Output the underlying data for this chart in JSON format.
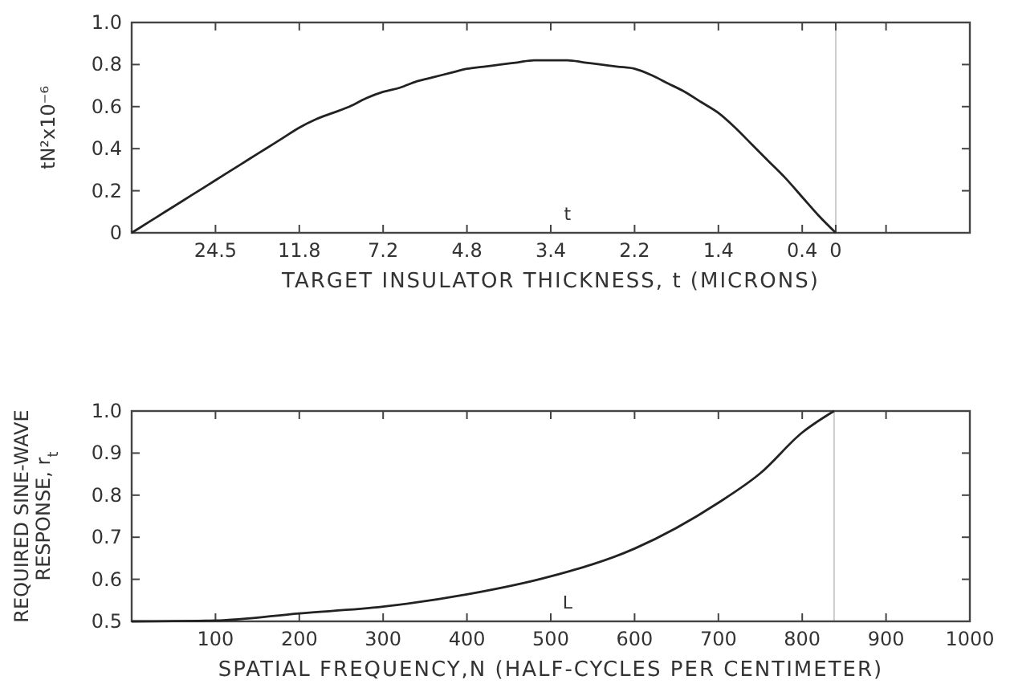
{
  "chart_data": [
    {
      "type": "line",
      "ylabel": "tN²x10⁻⁶",
      "xlabel": "TARGET INSULATOR THICKNESS, t (MICRONS)",
      "ylim": [
        0,
        1
      ],
      "categories": [
        null,
        null,
        null,
        null,
        null,
        "24.5",
        null,
        null,
        null,
        null,
        "11.8",
        null,
        null,
        null,
        null,
        "7.2",
        null,
        null,
        null,
        null,
        "4.8",
        null,
        null,
        null,
        null,
        "3.4",
        null,
        null,
        null,
        null,
        "2.2",
        null,
        null,
        null,
        null,
        "1.4",
        null,
        null,
        null,
        null,
        "0.4",
        null,
        "0",
        null,
        null,
        null,
        null,
        null,
        null,
        null,
        null
      ],
      "yticks": [
        0,
        0.2,
        0.4,
        0.6,
        0.8,
        {
          "value": 1,
          "label": "1.0"
        }
      ],
      "series": [
        {
          "color": "#222222",
          "values": [
            0,
            0.05,
            0.1,
            0.15,
            0.2,
            0.25,
            0.3,
            0.35,
            0.4,
            0.45,
            0.5,
            0.54,
            0.57,
            0.6,
            0.64,
            0.67,
            0.69,
            0.72,
            0.74,
            0.76,
            0.78,
            0.79,
            0.8,
            0.81,
            0.82,
            0.82,
            0.82,
            0.81,
            0.8,
            0.79,
            0.78,
            0.75,
            0.71,
            0.67,
            0.62,
            0.57,
            0.5,
            0.42,
            0.34,
            0.26,
            0.17,
            0.08,
            0,
            null,
            null,
            null,
            null,
            null,
            null,
            null,
            null
          ]
        }
      ],
      "ref_lines": [
        {
          "axis": "x",
          "value": "0",
          "color": "#cccccc"
        }
      ],
      "annotations": [
        "t"
      ],
      "grid": false
    },
    {
      "type": "line",
      "ylabel": "REQUIRED SINE-WAVE\nRESPONSE, r$_{t}$",
      "xlabel": "SPATIAL FREQUENCY,N (HALF-CYCLES PER CENTIMETER)",
      "xlim": [
        0,
        1000
      ],
      "ylim": [
        0.5,
        1
      ],
      "xticks": [
        100,
        200,
        300,
        400,
        500,
        600,
        700,
        800,
        900,
        1000
      ],
      "yticks": [
        0.5,
        0.6,
        0.7,
        0.8,
        0.9,
        {
          "value": 1,
          "label": "1.0"
        }
      ],
      "x": [
        0,
        100,
        200,
        300,
        400,
        500,
        600,
        700,
        750,
        800,
        838
      ],
      "series": [
        {
          "color": "#222222",
          "values": [
            0.5,
            0.502,
            0.519,
            0.535,
            0.564,
            0.607,
            0.673,
            0.782,
            0.852,
            0.949,
            1
          ]
        }
      ],
      "ref_lines": [
        {
          "axis": "x",
          "value": 838,
          "color": "#cccccc"
        }
      ],
      "annotations": [
        "L"
      ],
      "grid": false
    }
  ]
}
